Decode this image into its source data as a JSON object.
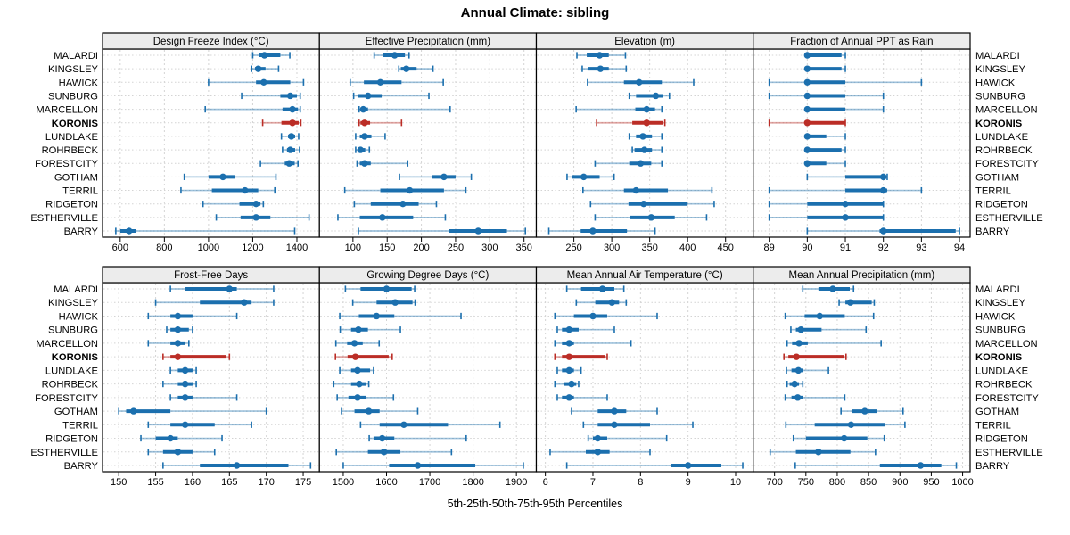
{
  "title": "Annual Climate: sibling",
  "xlabel": "5th-25th-50th-75th-95th Percentiles",
  "colors": {
    "series_blue": "#1b6fae",
    "highlight_red": "#bb2d26",
    "header_bg": "#ececec",
    "grid": "#d4d4d4",
    "panel_border": "#000000",
    "text": "#000000"
  },
  "chart_data": {
    "type": "dotplot-trellis",
    "title": "Annual Climate: sibling",
    "xlabel": "5th-25th-50th-75th-95th Percentiles",
    "percentile_levels": [
      5,
      25,
      50,
      75,
      95
    ],
    "highlight_station": "KORONIS",
    "legend_position": "none",
    "grid": true,
    "stations": [
      "MALARDI",
      "KINGSLEY",
      "HAWICK",
      "SUNBURG",
      "MARCELLON",
      "KORONIS",
      "LUNDLAKE",
      "ROHRBECK",
      "FORESTCITY",
      "GOTHAM",
      "TERRIL",
      "RIDGETON",
      "ESTHERVILLE",
      "BARRY"
    ],
    "panels": [
      {
        "title": "Design Freeze Index (°C)",
        "row": 0,
        "col": 0,
        "xlim": [
          520,
          1502
        ],
        "ticks": [
          600,
          800,
          1000,
          1200,
          1400
        ],
        "values": [
          [
            1200,
            1228,
            1253,
            1325,
            1368
          ],
          [
            1195,
            1210,
            1225,
            1258,
            1317
          ],
          [
            1000,
            1215,
            1250,
            1370,
            1430
          ],
          [
            1150,
            1325,
            1370,
            1400,
            1415
          ],
          [
            985,
            1335,
            1380,
            1405,
            1415
          ],
          [
            1245,
            1330,
            1380,
            1408,
            1418
          ],
          [
            1330,
            1360,
            1375,
            1392,
            1408
          ],
          [
            1335,
            1355,
            1370,
            1392,
            1412
          ],
          [
            1235,
            1345,
            1365,
            1390,
            1405
          ],
          [
            890,
            1000,
            1065,
            1120,
            1305
          ],
          [
            875,
            1015,
            1165,
            1225,
            1300
          ],
          [
            975,
            1140,
            1215,
            1235,
            1248
          ],
          [
            1035,
            1145,
            1215,
            1280,
            1455
          ],
          [
            580,
            600,
            640,
            672,
            1390
          ]
        ]
      },
      {
        "title": "Effective Precipitation (mm)",
        "row": 0,
        "col": 1,
        "xlim": [
          51,
          368
        ],
        "ticks": [
          100,
          150,
          200,
          250,
          300,
          350
        ],
        "values": [
          [
            131,
            144,
            161,
            176,
            182
          ],
          [
            167,
            170,
            178,
            193,
            217
          ],
          [
            96,
            116,
            140,
            171,
            232
          ],
          [
            101,
            107,
            122,
            142,
            211
          ],
          [
            109,
            111,
            115,
            122,
            242
          ],
          [
            109,
            111,
            117,
            125,
            171
          ],
          [
            104,
            110,
            117,
            127,
            147
          ],
          [
            104,
            107,
            111,
            118,
            124
          ],
          [
            106,
            110,
            117,
            126,
            180
          ],
          [
            168,
            215,
            233,
            250,
            273
          ],
          [
            88,
            140,
            183,
            233,
            265
          ],
          [
            102,
            126,
            173,
            196,
            222
          ],
          [
            78,
            110,
            143,
            188,
            235
          ],
          [
            108,
            240,
            283,
            325,
            352
          ]
        ]
      },
      {
        "title": "Elevation (m)",
        "row": 0,
        "col": 2,
        "xlim": [
          200.5,
          486.5
        ],
        "ticks": [
          250,
          300,
          350,
          400,
          450
        ],
        "values": [
          [
            254,
            267,
            284,
            296,
            318
          ],
          [
            261,
            269,
            285,
            296,
            319
          ],
          [
            268,
            316,
            336,
            366,
            408
          ],
          [
            323,
            332,
            358,
            368,
            376
          ],
          [
            253,
            331,
            346,
            357,
            366
          ],
          [
            280,
            327,
            346,
            367,
            370
          ],
          [
            323,
            332,
            341,
            353,
            366
          ],
          [
            327,
            330,
            343,
            353,
            366
          ],
          [
            278,
            323,
            338,
            352,
            366
          ],
          [
            241,
            248,
            263,
            284,
            303
          ],
          [
            262,
            316,
            332,
            374,
            432
          ],
          [
            272,
            322,
            342,
            400,
            435
          ],
          [
            278,
            324,
            352,
            383,
            425
          ],
          [
            217,
            259,
            275,
            320,
            357
          ]
        ]
      },
      {
        "title": "Fraction of Annual PPT as Rain",
        "row": 0,
        "col": 3,
        "xlim": [
          88.58,
          94.28
        ],
        "ticks": [
          89,
          90,
          91,
          92,
          93,
          94
        ],
        "values": [
          [
            90,
            90,
            90,
            90.9,
            91
          ],
          [
            90,
            90,
            90,
            90.9,
            91
          ],
          [
            89,
            90,
            90,
            91,
            93
          ],
          [
            89,
            90,
            90,
            91,
            92
          ],
          [
            90,
            90,
            90,
            91,
            92
          ],
          [
            89,
            90,
            90,
            91,
            91
          ],
          [
            90,
            90,
            90,
            90.5,
            91
          ],
          [
            90,
            90,
            90,
            90.9,
            91
          ],
          [
            90,
            90,
            90,
            90.5,
            91
          ],
          [
            90,
            91,
            92,
            92,
            92.1
          ],
          [
            89,
            91,
            92,
            92.1,
            93
          ],
          [
            89,
            90,
            91,
            92,
            92
          ],
          [
            89,
            90,
            91,
            92,
            92
          ],
          [
            90,
            91.9,
            92,
            93.9,
            94
          ]
        ]
      },
      {
        "title": "Frost-Free Days",
        "row": 1,
        "col": 0,
        "xlim": [
          147.8,
          177.2
        ],
        "ticks": [
          150,
          155,
          160,
          165,
          170,
          175
        ],
        "values": [
          [
            157,
            159,
            165,
            166,
            171
          ],
          [
            155,
            161,
            167,
            168,
            171
          ],
          [
            154,
            157,
            158,
            160,
            166
          ],
          [
            156.5,
            157,
            158,
            159.5,
            160
          ],
          [
            154,
            157,
            158,
            159,
            159.5
          ],
          [
            156,
            157,
            158,
            164.5,
            165
          ],
          [
            157,
            158,
            159,
            160,
            160.5
          ],
          [
            156,
            158,
            159,
            160,
            160.5
          ],
          [
            157,
            158,
            159,
            160,
            166
          ],
          [
            150,
            151,
            152,
            157,
            170
          ],
          [
            154,
            157,
            159,
            163,
            168
          ],
          [
            153,
            155,
            157,
            158,
            164
          ],
          [
            154,
            156,
            158,
            160,
            163
          ],
          [
            156,
            161,
            166,
            173,
            176
          ]
        ]
      },
      {
        "title": "Growing Degree Days (°C)",
        "row": 1,
        "col": 1,
        "xlim": [
          1445,
          1946
        ],
        "ticks": [
          1500,
          1600,
          1700,
          1800,
          1900
        ],
        "values": [
          [
            1505,
            1540,
            1600,
            1658,
            1665
          ],
          [
            1522,
            1577,
            1620,
            1660,
            1666
          ],
          [
            1492,
            1536,
            1577,
            1618,
            1772
          ],
          [
            1493,
            1518,
            1535,
            1557,
            1632
          ],
          [
            1483,
            1509,
            1526,
            1545,
            1583
          ],
          [
            1482,
            1510,
            1528,
            1605,
            1613
          ],
          [
            1492,
            1518,
            1533,
            1562,
            1570
          ],
          [
            1478,
            1518,
            1537,
            1553,
            1559
          ],
          [
            1486,
            1512,
            1533,
            1553,
            1616
          ],
          [
            1496,
            1526,
            1559,
            1584,
            1672
          ],
          [
            1540,
            1584,
            1640,
            1742,
            1862
          ],
          [
            1560,
            1570,
            1590,
            1618,
            1784
          ],
          [
            1484,
            1557,
            1594,
            1632,
            1750
          ],
          [
            1500,
            1606,
            1672,
            1805,
            1916
          ]
        ]
      },
      {
        "title": "Mean Annual Air Temperature (°C)",
        "row": 1,
        "col": 2,
        "xlim": [
          5.81,
          10.37
        ],
        "ticks": [
          6,
          7,
          8,
          9,
          10
        ],
        "values": [
          [
            6.45,
            6.75,
            7.2,
            7.45,
            7.65
          ],
          [
            6.65,
            7.05,
            7.4,
            7.55,
            7.7
          ],
          [
            6.2,
            6.6,
            7.0,
            7.3,
            8.35
          ],
          [
            6.25,
            6.35,
            6.5,
            6.7,
            7.45
          ],
          [
            6.2,
            6.35,
            6.5,
            6.6,
            7.8
          ],
          [
            6.2,
            6.35,
            6.5,
            7.25,
            7.3
          ],
          [
            6.25,
            6.35,
            6.5,
            6.6,
            6.75
          ],
          [
            6.2,
            6.4,
            6.55,
            6.65,
            6.7
          ],
          [
            6.25,
            6.35,
            6.5,
            6.6,
            7.3
          ],
          [
            6.55,
            7.1,
            7.45,
            7.7,
            8.35
          ],
          [
            6.8,
            7.1,
            7.45,
            8.2,
            9.1
          ],
          [
            6.9,
            7.0,
            7.1,
            7.3,
            8.55
          ],
          [
            6.1,
            6.85,
            7.1,
            7.35,
            8.2
          ],
          [
            6.45,
            8.65,
            9.0,
            9.7,
            10.15
          ]
        ]
      },
      {
        "title": "Mean Annual Precipitation (mm)",
        "row": 1,
        "col": 3,
        "xlim": [
          666,
          1012
        ],
        "ticks": [
          700,
          750,
          800,
          850,
          900,
          950,
          1000
        ],
        "values": [
          [
            745,
            770,
            793,
            820,
            826
          ],
          [
            803,
            813,
            821,
            855,
            859
          ],
          [
            717,
            748,
            772,
            812,
            858
          ],
          [
            726,
            734,
            742,
            775,
            846
          ],
          [
            720,
            728,
            739,
            753,
            870
          ],
          [
            715,
            722,
            735,
            810,
            814
          ],
          [
            719,
            727,
            738,
            746,
            786
          ],
          [
            720,
            724,
            732,
            739,
            745
          ],
          [
            717,
            727,
            737,
            745,
            812
          ],
          [
            806,
            824,
            844,
            863,
            905
          ],
          [
            718,
            764,
            822,
            876,
            908
          ],
          [
            730,
            750,
            811,
            848,
            875
          ],
          [
            693,
            734,
            770,
            821,
            861
          ],
          [
            733,
            868,
            933,
            966,
            990
          ]
        ]
      }
    ]
  }
}
